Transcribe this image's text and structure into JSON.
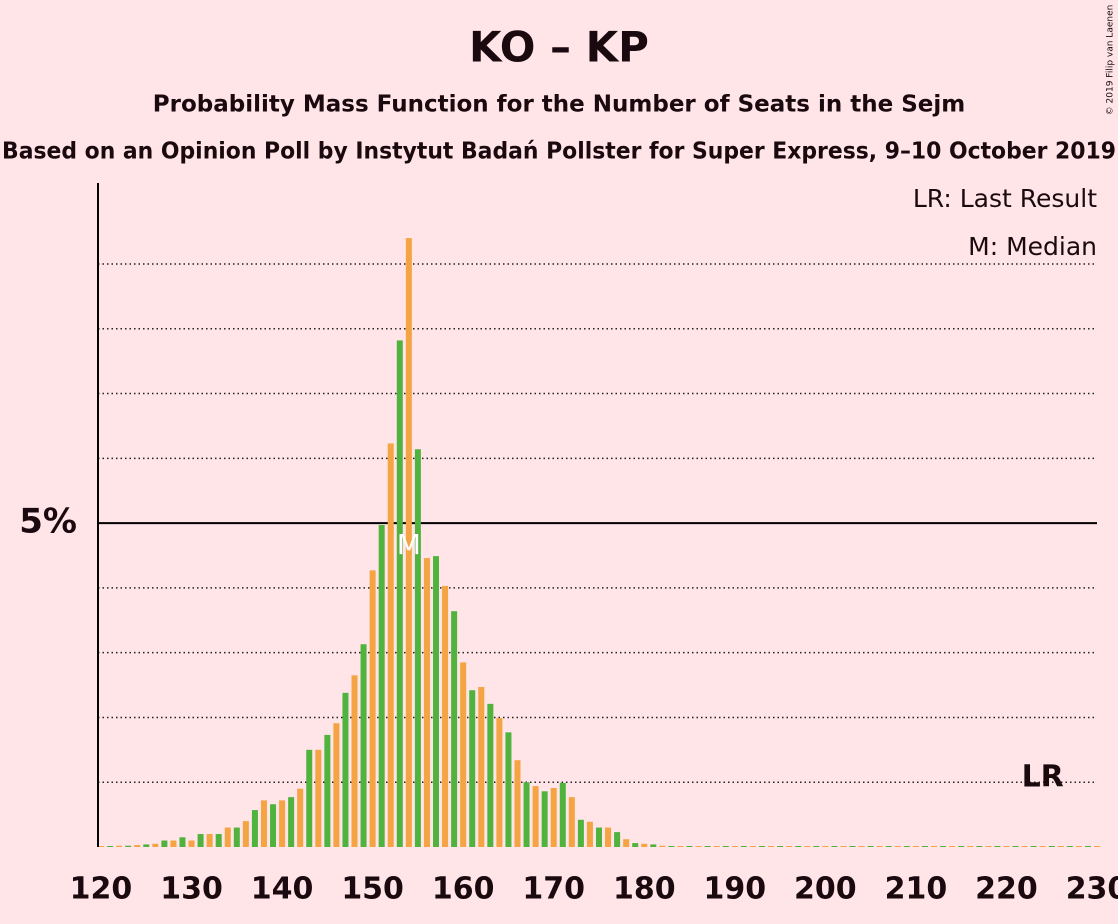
{
  "chart_data": {
    "type": "bar",
    "title": "KO – KP",
    "subtitle": "Probability Mass Function for the Number of Seats in the Sejm",
    "subtitle2": "Based on an Opinion Poll by Instytut Badań Pollster for Super Express, 9–10 October 2019",
    "copyright": "© 2019 Filip van Laenen",
    "legend": [
      "LR: Last Result",
      "M: Median"
    ],
    "x_start": 120,
    "values": [
      0.01,
      0.01,
      0.02,
      0.02,
      0.03,
      0.04,
      0.05,
      0.1,
      0.1,
      0.15,
      0.1,
      0.2,
      0.2,
      0.2,
      0.3,
      0.3,
      0.4,
      0.57,
      0.72,
      0.66,
      0.72,
      0.77,
      0.9,
      1.5,
      1.5,
      1.73,
      1.91,
      2.38,
      2.65,
      3.13,
      4.27,
      4.97,
      6.23,
      7.82,
      9.4,
      6.14,
      4.46,
      4.49,
      4.03,
      3.64,
      2.85,
      2.42,
      2.47,
      2.21,
      1.99,
      1.77,
      1.34,
      1.0,
      0.94,
      0.86,
      0.91,
      0.99,
      0.77,
      0.42,
      0.39,
      0.3,
      0.3,
      0.23,
      0.12,
      0.06,
      0.05,
      0.04,
      0.02,
      0.01,
      0,
      0,
      0,
      0,
      0,
      0,
      0,
      0,
      0,
      0,
      0,
      0,
      0,
      0,
      0,
      0,
      0,
      0,
      0,
      0,
      0,
      0,
      0,
      0,
      0,
      0,
      0,
      0,
      0,
      0,
      0,
      0,
      0,
      0,
      0,
      0,
      0,
      0,
      0,
      0,
      0,
      0,
      0,
      0,
      0,
      0,
      0
    ],
    "bar_colors": [
      "#f5a443",
      "#4fb33d"
    ],
    "xlim": [
      119.67,
      230
    ],
    "xticks": [
      120,
      130,
      140,
      150,
      160,
      170,
      180,
      190,
      200,
      210,
      220,
      230
    ],
    "ylim": [
      0,
      10.25
    ],
    "yticks": [
      {
        "value": 5,
        "label": "5%"
      }
    ],
    "grid_lines": [
      1,
      2,
      3,
      4,
      6,
      7,
      8,
      9
    ],
    "median": 154,
    "median_label": "M",
    "last_result": 224,
    "last_result_label": "LR"
  }
}
